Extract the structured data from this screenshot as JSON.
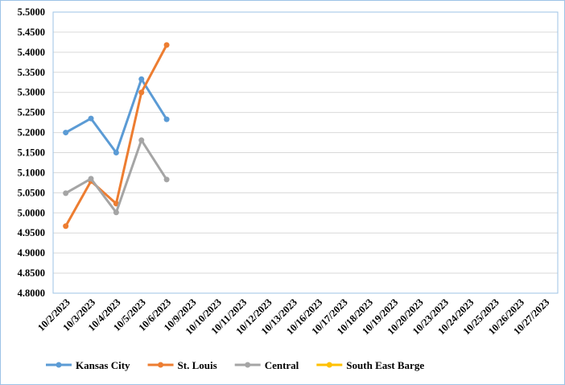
{
  "chart_data": {
    "type": "line",
    "categories": [
      "10/2/2023",
      "10/3/2023",
      "10/4/2023",
      "10/5/2023",
      "10/6/2023",
      "10/9/2023",
      "10/10/2023",
      "10/11/2023",
      "10/12/2023",
      "10/13/2023",
      "10/16/2023",
      "10/17/2023",
      "10/18/2023",
      "10/19/2023",
      "10/20/2023",
      "10/23/2023",
      "10/24/2023",
      "10/25/2023",
      "10/26/2023",
      "10/27/2023"
    ],
    "series": [
      {
        "name": "Kansas City",
        "color": "#5b9bd5",
        "values": [
          5.2,
          5.235,
          5.15,
          5.333,
          5.233,
          null,
          null,
          null,
          null,
          null,
          null,
          null,
          null,
          null,
          null,
          null,
          null,
          null,
          null,
          null
        ]
      },
      {
        "name": "St. Louis",
        "color": "#ed7d31",
        "values": [
          4.967,
          5.079,
          5.023,
          5.3,
          5.418,
          null,
          null,
          null,
          null,
          null,
          null,
          null,
          null,
          null,
          null,
          null,
          null,
          null,
          null,
          null
        ]
      },
      {
        "name": "Central",
        "color": "#a5a5a5",
        "values": [
          5.049,
          5.085,
          5.001,
          5.181,
          5.083,
          null,
          null,
          null,
          null,
          null,
          null,
          null,
          null,
          null,
          null,
          null,
          null,
          null,
          null,
          null
        ]
      },
      {
        "name": "South East Barge",
        "color": "#ffc000",
        "values": [
          null,
          null,
          null,
          null,
          null,
          null,
          null,
          null,
          null,
          null,
          null,
          null,
          null,
          null,
          null,
          null,
          null,
          null,
          null,
          null
        ]
      }
    ],
    "ylim": [
      4.8,
      5.5
    ],
    "yticks": [
      {
        "value": 4.8,
        "label": "4.8000"
      },
      {
        "value": 4.85,
        "label": "4.8500"
      },
      {
        "value": 4.9,
        "label": "4.9000"
      },
      {
        "value": 4.95,
        "label": "4.9500"
      },
      {
        "value": 5.0,
        "label": "5.0000"
      },
      {
        "value": 5.05,
        "label": "5.0500"
      },
      {
        "value": 5.1,
        "label": "5.1000"
      },
      {
        "value": 5.15,
        "label": "5.1500"
      },
      {
        "value": 5.2,
        "label": "5.2000"
      },
      {
        "value": 5.25,
        "label": "5.2500"
      },
      {
        "value": 5.3,
        "label": "5.3000"
      },
      {
        "value": 5.35,
        "label": "5.3500"
      },
      {
        "value": 5.4,
        "label": "5.4000"
      },
      {
        "value": 5.45,
        "label": "5.4500"
      },
      {
        "value": 5.5,
        "label": "5.5000"
      }
    ],
    "grid": true,
    "legend": "bottom"
  }
}
